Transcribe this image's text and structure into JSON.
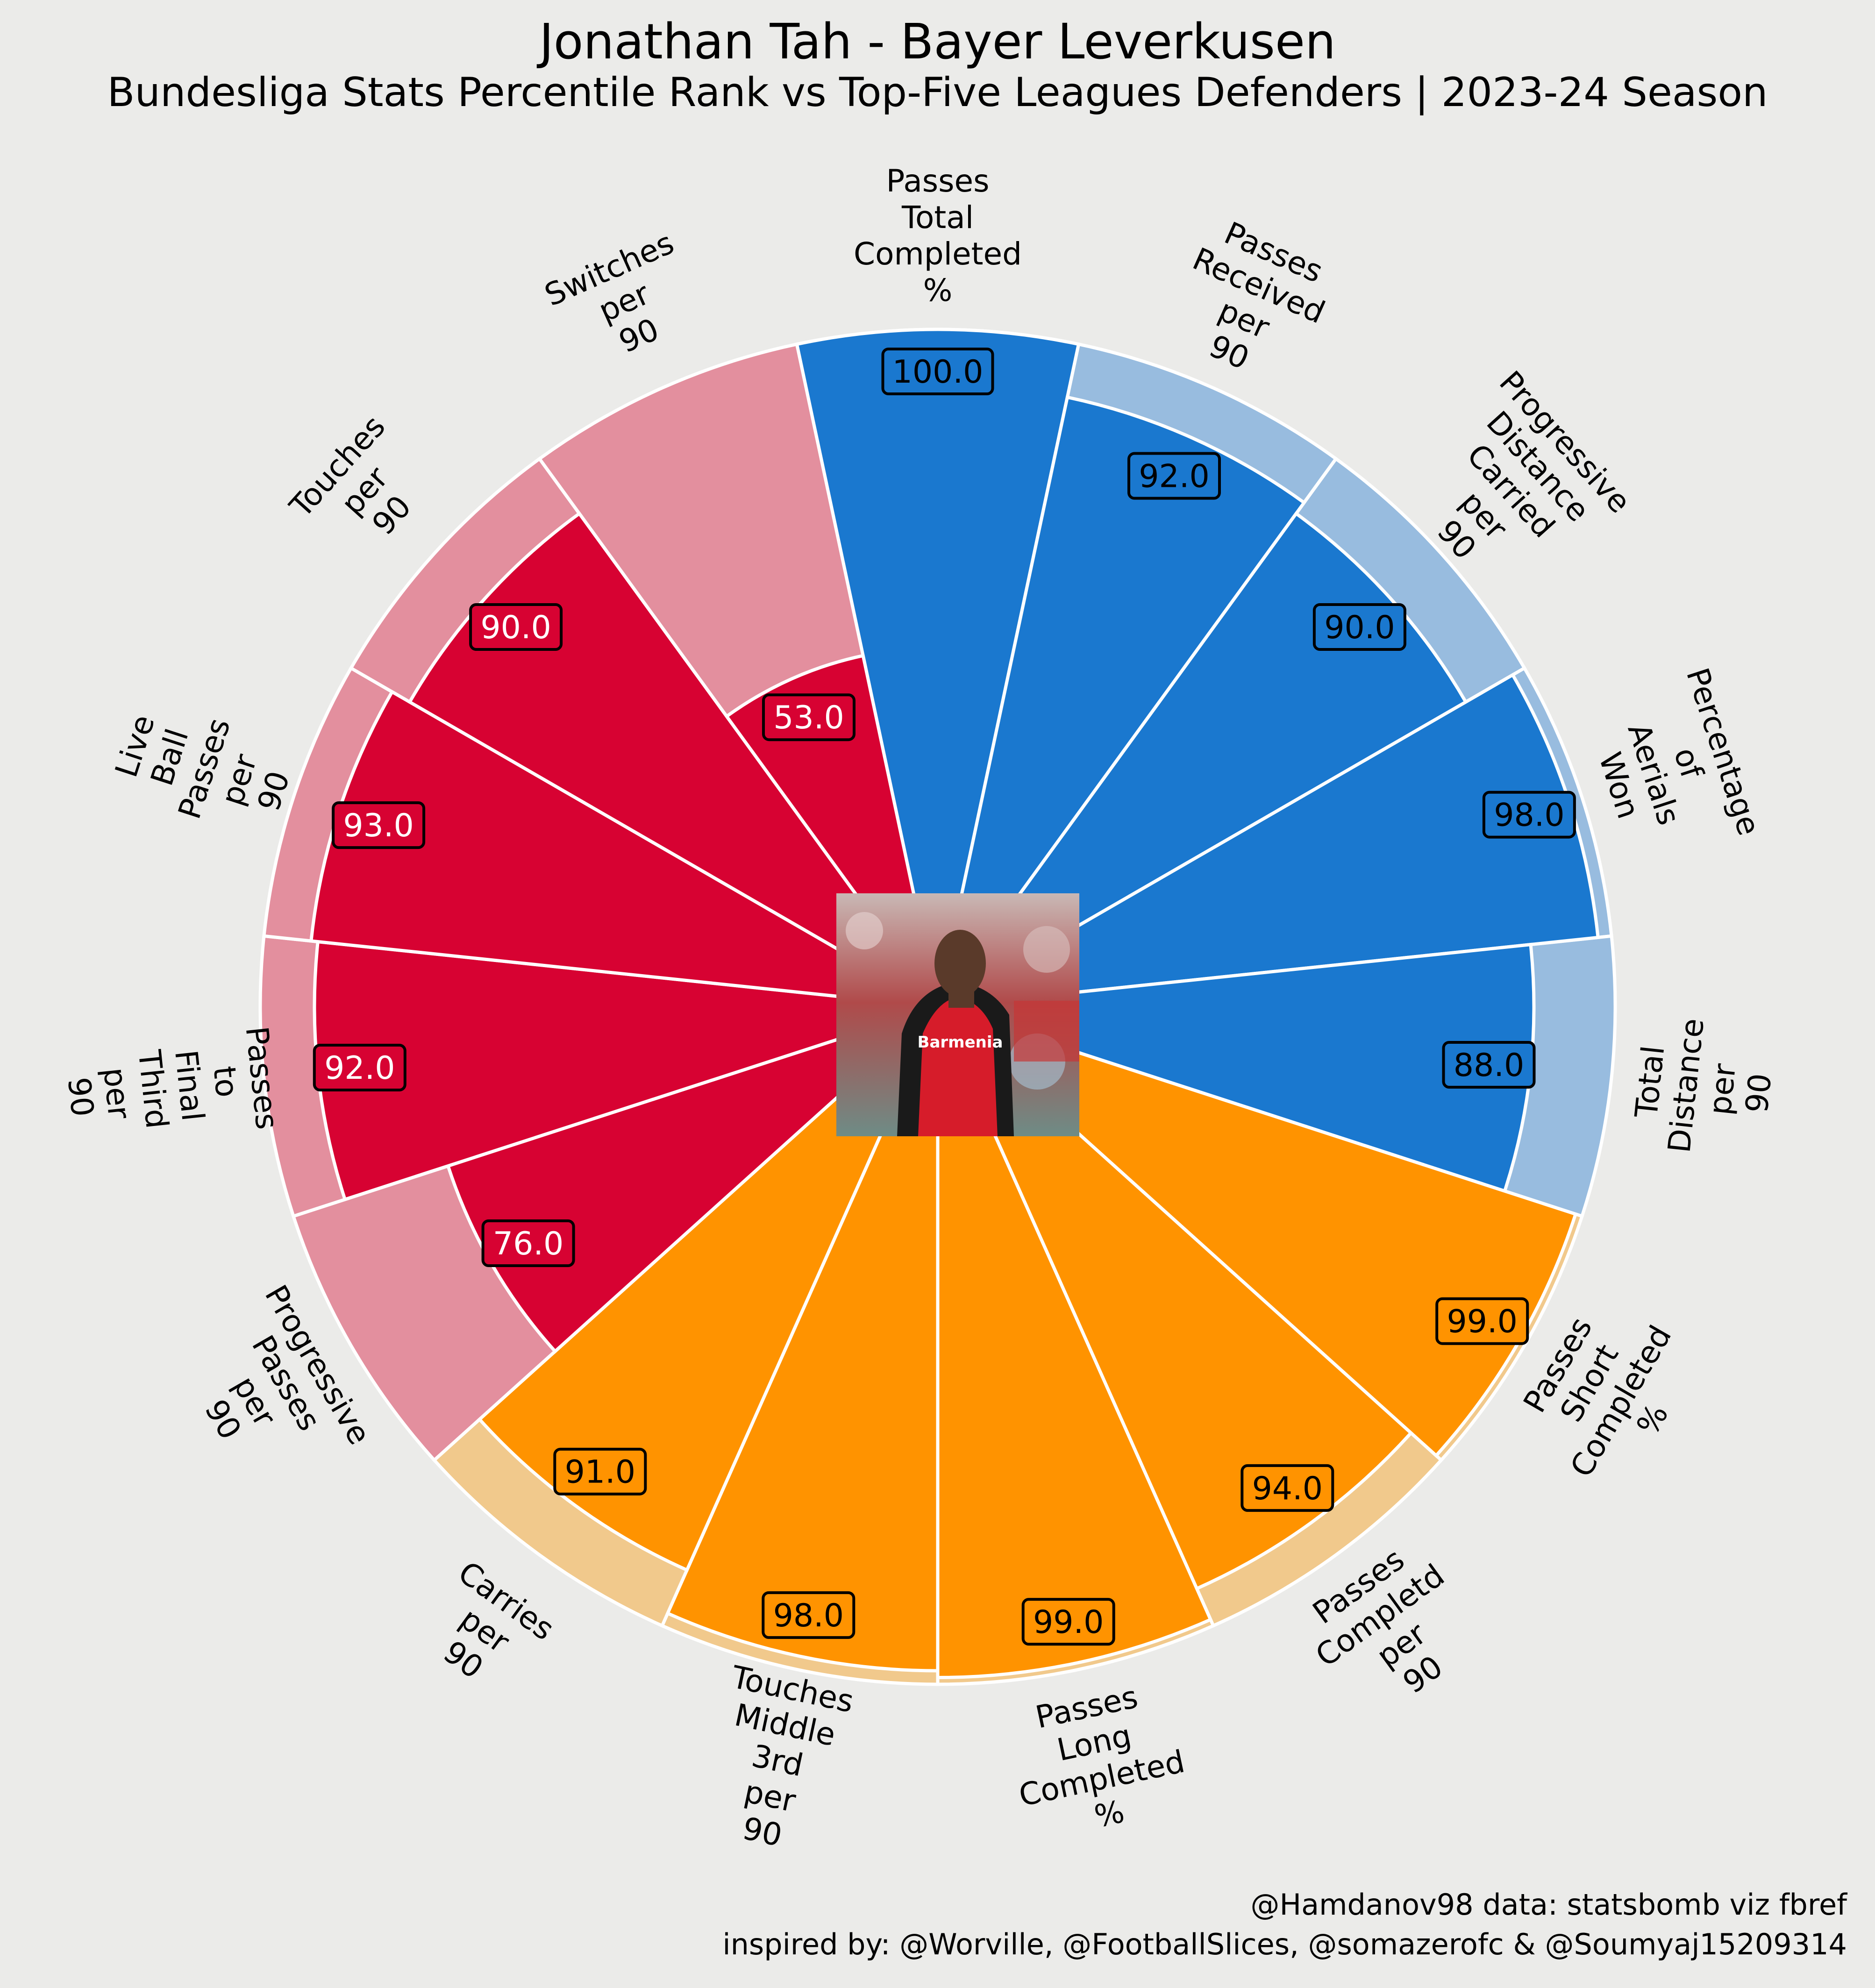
{
  "header": {
    "title": "Jonathan Tah - Bayer Leverkusen",
    "subtitle": "Bundesliga Stats Percentile Rank vs Top-Five Leagues Defenders | 2023-24 Season"
  },
  "footer": {
    "credit_line_1": "@Hamdanov98 data: statsbomb viz fbref",
    "credit_line_2": "inspired by: @Worville, @FootballSlices, @somazerofc & @Soumyaj15209314"
  },
  "player_photo": {
    "name": "player-photo",
    "shirt_text": "Barmenia"
  },
  "colors": {
    "background": "#EBEBE9",
    "blue": "#1A78CF",
    "blue_light": "#98BCDF",
    "orange": "#FF9300",
    "orange_light": "#F1C98C",
    "red": "#D70232",
    "red_light": "#E38F9E"
  },
  "chart_data": {
    "type": "radar-bar",
    "title": "Jonathan Tah - Bayer Leverkusen",
    "subtitle": "Bundesliga Stats Percentile Rank vs Top-Five Leagues Defenders | 2023-24 Season",
    "ylim": [
      0,
      100
    ],
    "categories": [
      "Passes Total Completed %",
      "Passes Received per 90",
      "Progressive Distance Carried per 90",
      "Percentage of Aerials Won",
      "Total Distance per 90",
      "Passes Short Completed %",
      "Passes Completd per 90",
      "Passes Long Completed %",
      "Touches Middle 3rd per 90",
      "Carries per 90",
      "Progressive Passes per 90",
      "Passes to Final Third per 90",
      "Live Ball Passes per 90",
      "Touches per 90",
      "Switches per 90"
    ],
    "values": [
      100.0,
      92.0,
      90.0,
      98.0,
      88.0,
      99.0,
      94.0,
      99.0,
      98.0,
      91.0,
      76.0,
      92.0,
      93.0,
      90.0,
      53.0
    ],
    "value_labels": [
      "100.0",
      "92.0",
      "90.0",
      "98.0",
      "88.0",
      "99.0",
      "94.0",
      "99.0",
      "98.0",
      "91.0",
      "76.0",
      "92.0",
      "93.0",
      "90.0",
      "53.0"
    ],
    "groups": [
      "blue",
      "blue",
      "blue",
      "blue",
      "blue",
      "orange",
      "orange",
      "orange",
      "orange",
      "orange",
      "red",
      "red",
      "red",
      "red",
      "red"
    ],
    "label_lines": [
      [
        "Passes",
        "Total",
        "Completed",
        "%"
      ],
      [
        "Passes",
        "Received",
        "per",
        "90"
      ],
      [
        "Progressive",
        "Distance",
        "Carried",
        "per",
        "90"
      ],
      [
        "Percentage",
        "of",
        "Aerials",
        "Won"
      ],
      [
        "Total",
        "Distance",
        "per",
        "90"
      ],
      [
        "Passes",
        "Short",
        "Completed",
        "%"
      ],
      [
        "Passes",
        "Completd",
        "per",
        "90"
      ],
      [
        "Passes",
        "Long",
        "Completed",
        "%"
      ],
      [
        "Touches",
        "Middle",
        "3rd",
        "per",
        "90"
      ],
      [
        "Carries",
        "per",
        "90"
      ],
      [
        "Progressive",
        "Passes",
        "per",
        "90"
      ],
      [
        "Passes",
        "to",
        "Final",
        "Third",
        "per",
        "90"
      ],
      [
        "Live",
        "Ball",
        "Passes",
        "per",
        "90"
      ],
      [
        "Touches",
        "per",
        "90"
      ],
      [
        "Switches",
        "per",
        "90"
      ]
    ]
  }
}
